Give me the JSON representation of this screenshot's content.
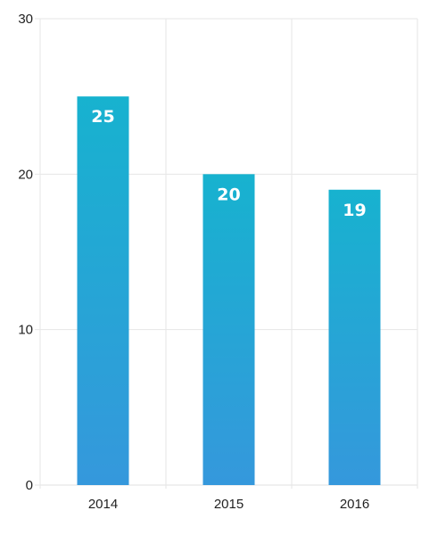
{
  "chart_data": {
    "type": "bar",
    "categories": [
      "2014",
      "2015",
      "2016"
    ],
    "values": [
      25,
      20,
      19
    ],
    "data_labels": [
      "25",
      "20",
      "19"
    ],
    "title": "",
    "xlabel": "",
    "ylabel": "",
    "ylim": [
      0,
      30
    ],
    "y_ticks": [
      0,
      10,
      20,
      30
    ],
    "y_tick_labels": [
      "0",
      "10",
      "20",
      "30"
    ],
    "grid": true,
    "legend": "none",
    "colors": {
      "bar_top": "#17b2cf",
      "bar_bottom": "#3598dc",
      "grid": "#e6e6e6",
      "text": "#222222",
      "data_label": "#ffffff"
    }
  }
}
